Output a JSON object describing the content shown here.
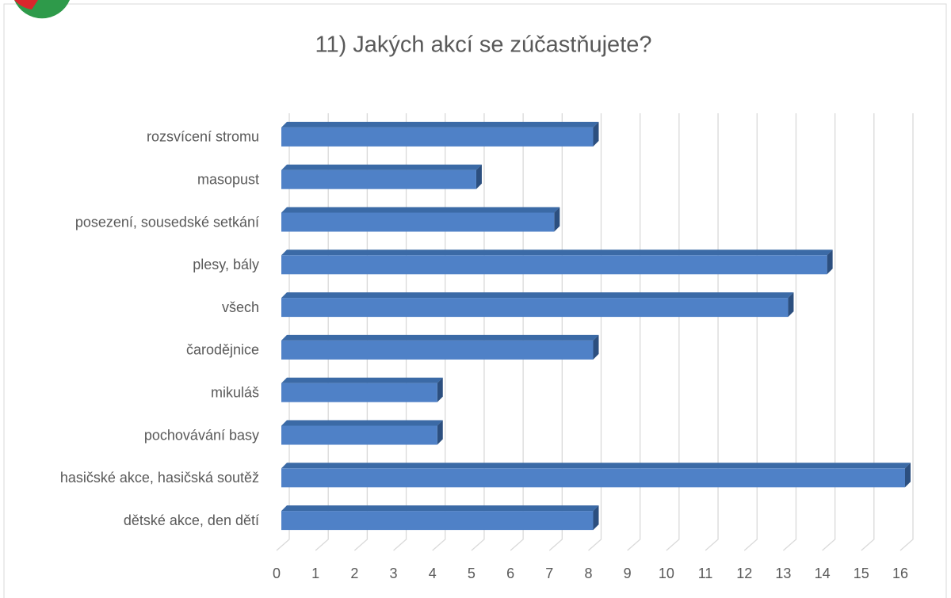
{
  "chart_data": {
    "type": "bar3d_horizontal",
    "title": "11) Jakých akcí se zúčastňujete?",
    "categories": [
      "rozsvícení stromu",
      "masopust",
      "posezení, sousedské setkání",
      "plesy, bály",
      "všech",
      "čarodějnice",
      "mikuláš",
      "pochovávání basy",
      "hasičské akce, hasičská soutěž",
      "dětské akce, den dětí"
    ],
    "values": [
      8,
      5,
      7,
      14,
      13,
      8,
      4,
      4,
      16,
      8
    ],
    "color": "#4f81c7",
    "xlim": [
      0,
      16
    ],
    "xticks": [
      0,
      1,
      2,
      3,
      4,
      5,
      6,
      7,
      8,
      9,
      10,
      11,
      12,
      13,
      14,
      15,
      16
    ],
    "grid": true
  }
}
